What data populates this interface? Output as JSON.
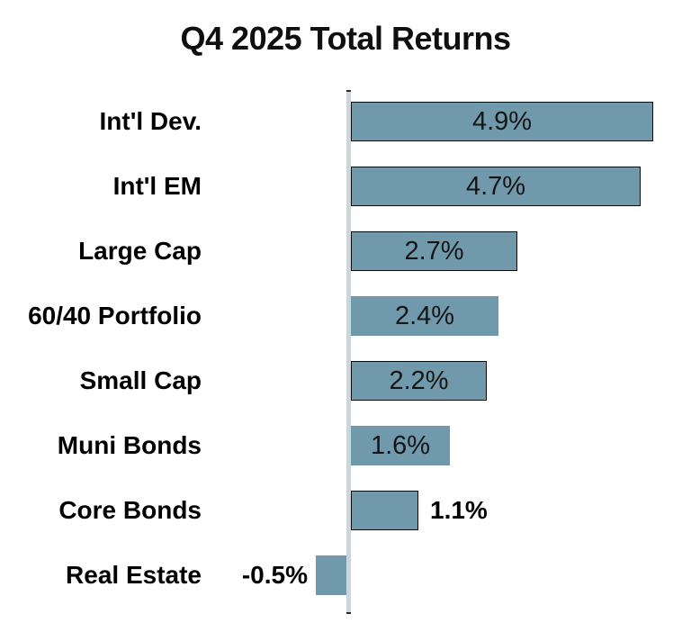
{
  "title": "Q4 2025 Total Returns",
  "colors": {
    "background": "#FFFFFF",
    "bar-fill": "#7099AB",
    "bar-border": "#0A0A0A",
    "axis-line": "#CBD7DC",
    "axis-cap": "#2B2B2B",
    "title-text": "#0F0F0F",
    "label-text": "#000000",
    "value-text": "#161616"
  },
  "chart_data": {
    "type": "bar",
    "orientation": "horizontal",
    "title": "Q4 2025 Total Returns",
    "categories": [
      "Int'l Dev.",
      "Int'l EM",
      "Large Cap",
      "60/40 Portfolio",
      "Small Cap",
      "Muni Bonds",
      "Core Bonds",
      "Real Estate"
    ],
    "values": [
      4.9,
      4.7,
      2.7,
      2.4,
      2.2,
      1.6,
      1.1,
      -0.5
    ],
    "value_labels": [
      "4.9%",
      "4.7%",
      "2.7%",
      "2.4%",
      "2.2%",
      "1.6%",
      "1.1%",
      "-0.5%"
    ],
    "value_label_placement": [
      "inside",
      "inside",
      "inside",
      "inside",
      "inside",
      "inside",
      "outside-right",
      "outside-left"
    ],
    "bar_border_visible": [
      true,
      true,
      true,
      false,
      true,
      false,
      true,
      false
    ],
    "xlabel": "",
    "ylabel": "",
    "xlim": [
      -0.5,
      4.9
    ],
    "baseline": 0,
    "grid": false,
    "legend": false
  }
}
